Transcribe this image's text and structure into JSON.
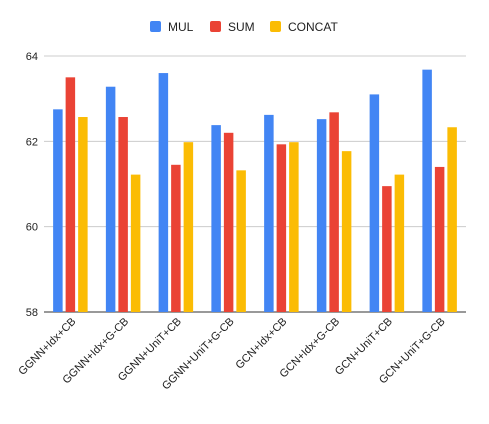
{
  "chart_data": {
    "type": "bar",
    "title": "",
    "xlabel": "",
    "ylabel": "",
    "ylim": [
      58,
      64
    ],
    "yticks": [
      58,
      60,
      62,
      64
    ],
    "grid": true,
    "legend_position": "top",
    "categories": [
      "GGNN+Idx+CB",
      "GGNN+Idx+G-CB",
      "GGNN+UniT+CB",
      "GGNN+UniT+G-CB",
      "GCN+Idx+CB",
      "GCN+Idx+G-CB",
      "GCN+UniT+CB",
      "GCN+UniT+G-CB"
    ],
    "series": [
      {
        "name": "MUL",
        "color": "#4285F4",
        "values": [
          62.75,
          63.28,
          63.6,
          62.38,
          62.62,
          62.52,
          63.1,
          63.68
        ]
      },
      {
        "name": "SUM",
        "color": "#EA4335",
        "values": [
          63.5,
          62.57,
          61.45,
          62.2,
          61.93,
          62.68,
          60.95,
          61.4
        ]
      },
      {
        "name": "CONCAT",
        "color": "#FBBC04",
        "values": [
          62.57,
          61.22,
          61.98,
          61.32,
          61.98,
          61.77,
          61.22,
          62.33
        ]
      }
    ]
  }
}
